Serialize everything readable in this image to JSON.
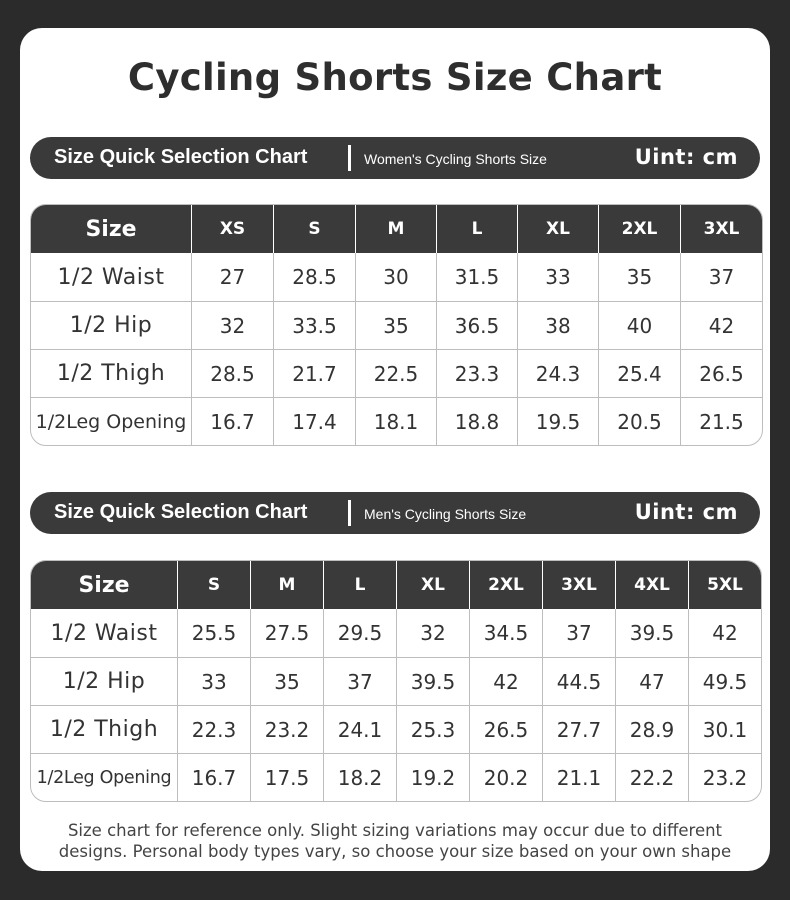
{
  "title": "Cycling Shorts Size Chart",
  "women": {
    "banner_title": "Size Quick Selection Chart",
    "banner_subtitle": "Women's Cycling Shorts Size",
    "unit": "Uint: cm",
    "header": [
      "Size",
      "XS",
      "S",
      "M",
      "L",
      "XL",
      "2XL",
      "3XL"
    ],
    "rows": [
      [
        "1/2 Waist",
        "27",
        "28.5",
        "30",
        "31.5",
        "33",
        "35",
        "37"
      ],
      [
        "1/2 Hip",
        "32",
        "33.5",
        "35",
        "36.5",
        "38",
        "40",
        "42"
      ],
      [
        "1/2 Thigh",
        "28.5",
        "21.7",
        "22.5",
        "23.3",
        "24.3",
        "25.4",
        "26.5"
      ],
      [
        "1/2Leg Opening",
        "16.7",
        "17.4",
        "18.1",
        "18.8",
        "19.5",
        "20.5",
        "21.5"
      ]
    ]
  },
  "men": {
    "banner_title": "Size Quick Selection Chart",
    "banner_subtitle": "Men's Cycling Shorts Size",
    "unit": "Uint: cm",
    "header": [
      "Size",
      "S",
      "M",
      "L",
      "XL",
      "2XL",
      "3XL",
      "4XL",
      "5XL"
    ],
    "rows": [
      [
        "1/2 Waist",
        "25.5",
        "27.5",
        "29.5",
        "32",
        "34.5",
        "37",
        "39.5",
        "42"
      ],
      [
        "1/2 Hip",
        "33",
        "35",
        "37",
        "39.5",
        "42",
        "44.5",
        "47",
        "49.5"
      ],
      [
        "1/2 Thigh",
        "22.3",
        "23.2",
        "24.1",
        "25.3",
        "26.5",
        "27.7",
        "28.9",
        "30.1"
      ],
      [
        "1/2Leg Opening",
        "16.7",
        "17.5",
        "18.2",
        "19.2",
        "20.2",
        "21.1",
        "22.2",
        "23.2"
      ]
    ]
  },
  "footnote_line1": "Size chart for reference only. Slight sizing variations may occur due to different",
  "footnote_line2": "designs. Personal body types vary, so choose your size based on your own shape"
}
